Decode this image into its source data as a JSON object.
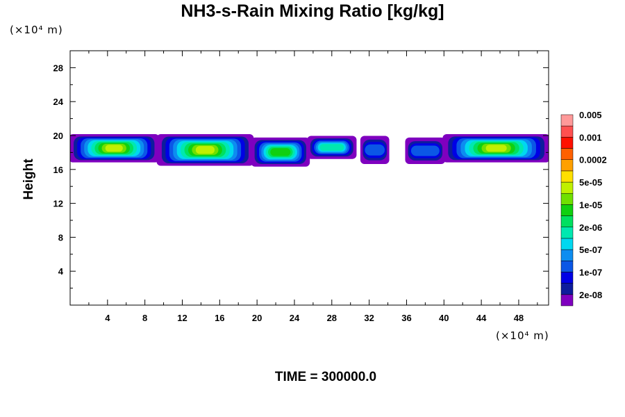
{
  "chart_data": {
    "type": "heatmap",
    "title": "NH3-s-Rain Mixing Ratio [kg/kg]",
    "ylabel": "Height",
    "xlabel": "",
    "y_unit": "(×10⁴ m)",
    "x_unit": "(×10⁴ m)",
    "xlim": [
      0,
      51.2
    ],
    "ylim": [
      0,
      30
    ],
    "x_ticks": [
      4,
      8,
      12,
      16,
      20,
      24,
      28,
      32,
      36,
      40,
      44,
      48
    ],
    "y_ticks": [
      4,
      8,
      12,
      16,
      20,
      24,
      28
    ],
    "colorbar": {
      "colors": [
        "#7f00bf",
        "#0d1d9c",
        "#0000e5",
        "#0b57e6",
        "#0d8df0",
        "#00d8f0",
        "#00e8b0",
        "#00e060",
        "#10d010",
        "#70e000",
        "#c0f000",
        "#ffe000",
        "#ffa000",
        "#ff6000",
        "#ff1000",
        "#ff5050",
        "#ff9999"
      ],
      "labels": [
        "2e-08",
        "1e-07",
        "5e-07",
        "2e-06",
        "1e-05",
        "5e-05",
        "0.0002",
        "0.001",
        "0.005"
      ]
    },
    "bands": [
      {
        "x_start": 0.0,
        "x_end": 9.4,
        "y_bottom": 17.0,
        "y_top": 20.0,
        "peak": "yellow-green"
      },
      {
        "x_start": 9.4,
        "x_end": 19.5,
        "y_bottom": 16.6,
        "y_top": 20.0,
        "peak": "yellow-green"
      },
      {
        "x_start": 19.5,
        "x_end": 25.5,
        "y_bottom": 16.5,
        "y_top": 19.6,
        "peak": "green"
      },
      {
        "x_start": 25.5,
        "x_end": 30.5,
        "y_bottom": 17.4,
        "y_top": 19.8,
        "peak": "cyan"
      },
      {
        "x_start": 31.2,
        "x_end": 34.0,
        "y_bottom": 16.8,
        "y_top": 19.8,
        "peak": "blue"
      },
      {
        "x_start": 36.0,
        "x_end": 40.0,
        "y_bottom": 16.8,
        "y_top": 19.6,
        "peak": "blue"
      },
      {
        "x_start": 40.0,
        "x_end": 51.2,
        "y_bottom": 17.0,
        "y_top": 20.0,
        "peak": "yellow-green"
      }
    ]
  },
  "footer": {
    "label": "TIME = 300000.0"
  }
}
